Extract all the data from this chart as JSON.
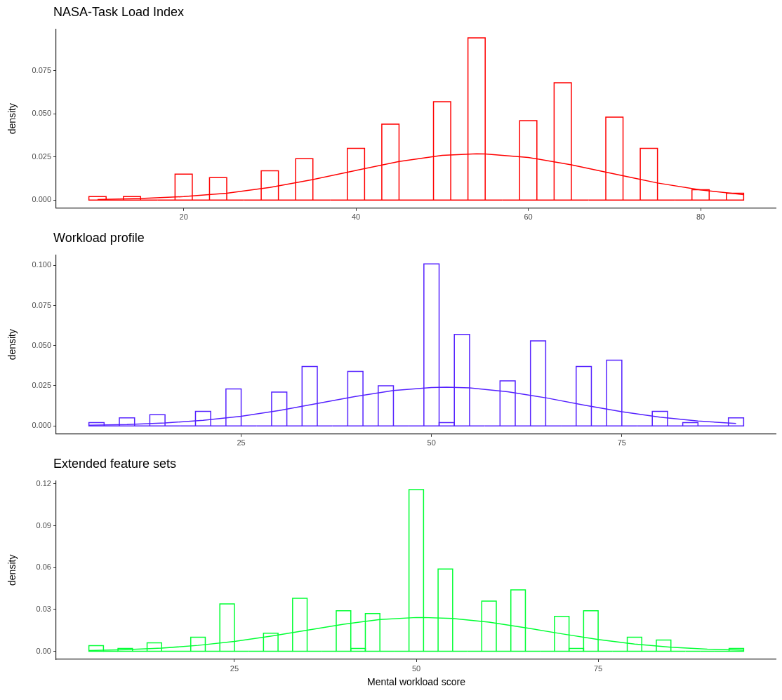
{
  "chart_data": [
    {
      "type": "histogram",
      "title": "NASA-Task Load Index",
      "ylabel": "density",
      "color": "#ff0000",
      "bins": [
        9,
        11,
        13,
        15,
        17,
        19,
        21,
        23,
        25,
        27,
        29,
        31,
        33,
        35,
        37,
        39,
        41,
        43,
        45,
        47,
        49,
        51,
        53,
        55,
        57,
        59,
        61,
        63,
        65,
        67,
        69,
        71,
        73,
        75,
        77,
        79,
        81,
        83,
        85
      ],
      "values": [
        0.002,
        0,
        0.002,
        0,
        0,
        0.015,
        0,
        0.013,
        0,
        0,
        0.017,
        0,
        0.024,
        0,
        0,
        0.03,
        0,
        0.044,
        0,
        0,
        0.057,
        0,
        0.094,
        0,
        0,
        0.046,
        0,
        0.068,
        0,
        0,
        0.048,
        0,
        0.03,
        0,
        0,
        0.006,
        0,
        0.004
      ],
      "series": [
        {
          "type": "line",
          "color": "#ff0000",
          "x": [
            10,
            15,
            20,
            25,
            30,
            35,
            40,
            45,
            50,
            54,
            55,
            60,
            65,
            70,
            75,
            80,
            85
          ],
          "values": [
            0.0003,
            0.0009,
            0.002,
            0.004,
            0.0073,
            0.0119,
            0.0172,
            0.0223,
            0.0259,
            0.0268,
            0.0267,
            0.0247,
            0.0204,
            0.0151,
            0.0099,
            0.0059,
            0.0031
          ]
        }
      ],
      "xlim": [
        5.2,
        88.8
      ],
      "xticks": [
        20,
        40,
        60,
        80
      ],
      "ylim": [
        -0.0047,
        0.099
      ],
      "yticks": [
        {
          "value": 0,
          "label": "0.000"
        },
        {
          "value": 0.025,
          "label": "0.025"
        },
        {
          "value": 0.05,
          "label": "0.050"
        },
        {
          "value": 0.075,
          "label": "0.075"
        }
      ],
      "grid": false,
      "legend": false,
      "marker": "none"
    },
    {
      "type": "histogram",
      "title": "Workload profile",
      "ylabel": "density",
      "color": "#5522ff",
      "bins": [
        5,
        7,
        9,
        11,
        13,
        15,
        17,
        19,
        21,
        23,
        25,
        27,
        29,
        31,
        33,
        35,
        37,
        39,
        41,
        43,
        45,
        47,
        49,
        51,
        53,
        55,
        57,
        59,
        61,
        63,
        65,
        67,
        69,
        71,
        73,
        75,
        77,
        79,
        81,
        83,
        85,
        87,
        89,
        91
      ],
      "values": [
        0.002,
        0,
        0.005,
        0,
        0.007,
        0,
        0,
        0.009,
        0,
        0.023,
        0,
        0,
        0.021,
        0,
        0.037,
        0,
        0,
        0.034,
        0,
        0.025,
        0,
        0,
        0.101,
        0.002,
        0.057,
        0,
        0,
        0.028,
        0,
        0.053,
        0,
        0,
        0.037,
        0,
        0.041,
        0,
        0,
        0.009,
        0,
        0.002,
        0,
        0,
        0.005
      ],
      "series": [
        {
          "type": "line",
          "color": "#5522ff",
          "x": [
            5,
            10,
            15,
            20,
            25,
            30,
            35,
            40,
            45,
            50,
            52,
            55,
            60,
            65,
            70,
            75,
            80,
            85,
            90
          ],
          "values": [
            0.0004,
            0.0008,
            0.0018,
            0.0034,
            0.006,
            0.0096,
            0.0139,
            0.0183,
            0.022,
            0.0239,
            0.0241,
            0.0237,
            0.0213,
            0.0175,
            0.013,
            0.0088,
            0.0054,
            0.003,
            0.0015
          ]
        }
      ],
      "xlim": [
        0.7,
        95.3
      ],
      "xticks": [
        25,
        50,
        75
      ],
      "ylim": [
        -0.0051,
        0.1065
      ],
      "yticks": [
        {
          "value": 0,
          "label": "0.000"
        },
        {
          "value": 0.025,
          "label": "0.025"
        },
        {
          "value": 0.05,
          "label": "0.050"
        },
        {
          "value": 0.075,
          "label": "0.075"
        },
        {
          "value": 0.1,
          "label": "0.100"
        }
      ],
      "grid": false,
      "legend": false,
      "marker": "none"
    },
    {
      "type": "histogram",
      "title": "Extended feature sets",
      "ylabel": "density",
      "xlabel": "Mental workload score",
      "color": "#00ff33",
      "bins": [
        5,
        7,
        9,
        11,
        13,
        15,
        17,
        19,
        21,
        23,
        25,
        27,
        29,
        31,
        33,
        35,
        37,
        39,
        41,
        43,
        45,
        47,
        49,
        51,
        53,
        55,
        57,
        59,
        61,
        63,
        65,
        67,
        69,
        71,
        73,
        75,
        77,
        79,
        81,
        83,
        85,
        87,
        89,
        91,
        93,
        95
      ],
      "values": [
        0.004,
        0,
        0.002,
        0,
        0.006,
        0,
        0,
        0.01,
        0,
        0.034,
        0,
        0,
        0.013,
        0,
        0.038,
        0,
        0,
        0.029,
        0.002,
        0.027,
        0,
        0,
        0.116,
        0,
        0.059,
        0,
        0,
        0.036,
        0,
        0.044,
        0,
        0,
        0.025,
        0.002,
        0.029,
        0,
        0,
        0.01,
        0,
        0.008,
        0,
        0,
        0,
        0,
        0.002
      ],
      "series": [
        {
          "type": "line",
          "color": "#00ff33",
          "x": [
            5,
            10,
            15,
            20,
            25,
            30,
            35,
            40,
            45,
            50,
            51,
            55,
            60,
            65,
            70,
            75,
            80,
            85,
            90,
            95
          ],
          "values": [
            0.0005,
            0.0011,
            0.0022,
            0.0042,
            0.007,
            0.0108,
            0.0151,
            0.0194,
            0.0227,
            0.0242,
            0.0242,
            0.0235,
            0.0209,
            0.0169,
            0.0125,
            0.0084,
            0.0052,
            0.0029,
            0.0015,
            0.0007
          ]
        }
      ],
      "xlim": [
        0.5,
        99.5
      ],
      "xticks": [
        25,
        50,
        75
      ],
      "ylim": [
        -0.0058,
        0.1222
      ],
      "yticks": [
        {
          "value": 0,
          "label": "0.00"
        },
        {
          "value": 0.03,
          "label": "0.03"
        },
        {
          "value": 0.06,
          "label": "0.06"
        },
        {
          "value": 0.09,
          "label": "0.09"
        },
        {
          "value": 0.12,
          "label": "0.12"
        }
      ],
      "grid": false,
      "legend": false,
      "marker": "none"
    }
  ]
}
